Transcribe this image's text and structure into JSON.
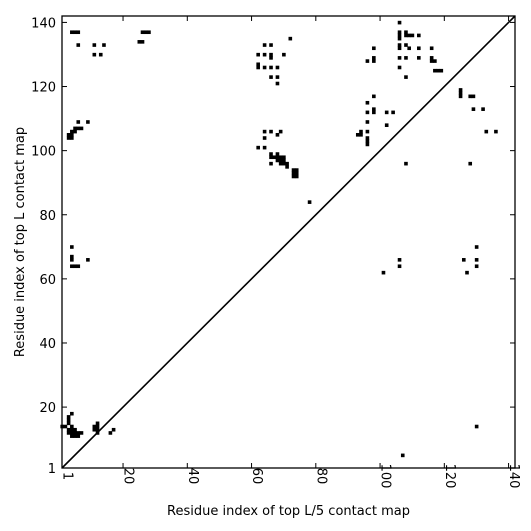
{
  "chart_data": {
    "type": "scatter",
    "title": "",
    "xlabel": "Residue index of top L/5 contact map",
    "ylabel": "Residue index of top L contact map",
    "xlim": [
      1,
      142
    ],
    "ylim": [
      1,
      142
    ],
    "xticks": [
      1,
      20,
      40,
      60,
      80,
      100,
      120,
      140
    ],
    "yticks": [
      1,
      20,
      40,
      60,
      80,
      100,
      120,
      140
    ],
    "grid": false,
    "legend": "none",
    "marker": "square",
    "marker_color": "#000000",
    "diagonal_line": true,
    "series": [
      {
        "values": [
          [
            4,
            137
          ],
          [
            5,
            137
          ],
          [
            6,
            137
          ],
          [
            6,
            133
          ],
          [
            11,
            133
          ],
          [
            11,
            130
          ],
          [
            13,
            130
          ],
          [
            14,
            133
          ],
          [
            25,
            134
          ],
          [
            26,
            134
          ],
          [
            26,
            137
          ],
          [
            27,
            137
          ],
          [
            28,
            137
          ],
          [
            62,
            130
          ],
          [
            62,
            127
          ],
          [
            62,
            126
          ],
          [
            64,
            133
          ],
          [
            64,
            130
          ],
          [
            64,
            126
          ],
          [
            66,
            133
          ],
          [
            66,
            130
          ],
          [
            66,
            129
          ],
          [
            66,
            126
          ],
          [
            66,
            123
          ],
          [
            68,
            126
          ],
          [
            68,
            123
          ],
          [
            68,
            121
          ],
          [
            70,
            130
          ],
          [
            72,
            135
          ],
          [
            98,
            132
          ],
          [
            98,
            128
          ],
          [
            98,
            129
          ],
          [
            96,
            128
          ],
          [
            106,
            140
          ],
          [
            106,
            137
          ],
          [
            106,
            136
          ],
          [
            106,
            135
          ],
          [
            106,
            133
          ],
          [
            106,
            132
          ],
          [
            106,
            129
          ],
          [
            106,
            126
          ],
          [
            108,
            137
          ],
          [
            108,
            136
          ],
          [
            109,
            136
          ],
          [
            108,
            133
          ],
          [
            109,
            132
          ],
          [
            108,
            129
          ],
          [
            108,
            123
          ],
          [
            110,
            136
          ],
          [
            112,
            136
          ],
          [
            112,
            132
          ],
          [
            112,
            129
          ],
          [
            116,
            132
          ],
          [
            116,
            129
          ],
          [
            116,
            128
          ],
          [
            117,
            128
          ],
          [
            117,
            125
          ],
          [
            118,
            125
          ],
          [
            119,
            125
          ],
          [
            98,
            117
          ],
          [
            96,
            115
          ],
          [
            96,
            112
          ],
          [
            98,
            113
          ],
          [
            98,
            112
          ],
          [
            96,
            109
          ],
          [
            102,
            112
          ],
          [
            104,
            112
          ],
          [
            102,
            108
          ],
          [
            96,
            106
          ],
          [
            94,
            106
          ],
          [
            93,
            105
          ],
          [
            94,
            105
          ],
          [
            96,
            104
          ],
          [
            96,
            103
          ],
          [
            96,
            102
          ],
          [
            125,
            119
          ],
          [
            125,
            118
          ],
          [
            125,
            117
          ],
          [
            128,
            117
          ],
          [
            129,
            117
          ],
          [
            129,
            113
          ],
          [
            132,
            113
          ],
          [
            133,
            106
          ],
          [
            136,
            106
          ],
          [
            3,
            105
          ],
          [
            3,
            104
          ],
          [
            4,
            106
          ],
          [
            4,
            105
          ],
          [
            4,
            104
          ],
          [
            5,
            107
          ],
          [
            5,
            106
          ],
          [
            6,
            107
          ],
          [
            6,
            109
          ],
          [
            7,
            107
          ],
          [
            9,
            109
          ],
          [
            62,
            101
          ],
          [
            64,
            101
          ],
          [
            64,
            104
          ],
          [
            64,
            106
          ],
          [
            66,
            106
          ],
          [
            68,
            105
          ],
          [
            69,
            106
          ],
          [
            66,
            99
          ],
          [
            66,
            98
          ],
          [
            66,
            96
          ],
          [
            67,
            98
          ],
          [
            68,
            98
          ],
          [
            68,
            99
          ],
          [
            68,
            97
          ],
          [
            69,
            98
          ],
          [
            69,
            97
          ],
          [
            69,
            96
          ],
          [
            70,
            98
          ],
          [
            70,
            97
          ],
          [
            70,
            96
          ],
          [
            71,
            96
          ],
          [
            71,
            95
          ],
          [
            73,
            94
          ],
          [
            73,
            93
          ],
          [
            73,
            92
          ],
          [
            74,
            94
          ],
          [
            74,
            93
          ],
          [
            74,
            92
          ],
          [
            78,
            84
          ],
          [
            108,
            96
          ],
          [
            128,
            96
          ],
          [
            4,
            70
          ],
          [
            4,
            67
          ],
          [
            4,
            66
          ],
          [
            4,
            64
          ],
          [
            5,
            64
          ],
          [
            6,
            64
          ],
          [
            9,
            66
          ],
          [
            101,
            62
          ],
          [
            106,
            66
          ],
          [
            106,
            64
          ],
          [
            126,
            66
          ],
          [
            127,
            62
          ],
          [
            130,
            70
          ],
          [
            130,
            66
          ],
          [
            130,
            64
          ],
          [
            1,
            14
          ],
          [
            2,
            14
          ],
          [
            3,
            17
          ],
          [
            3,
            16
          ],
          [
            3,
            15
          ],
          [
            3,
            13
          ],
          [
            3,
            12
          ],
          [
            4,
            18
          ],
          [
            4,
            14
          ],
          [
            4,
            13
          ],
          [
            4,
            12
          ],
          [
            4,
            11
          ],
          [
            5,
            13
          ],
          [
            5,
            12
          ],
          [
            5,
            11
          ],
          [
            6,
            12
          ],
          [
            6,
            11
          ],
          [
            7,
            12
          ],
          [
            11,
            14
          ],
          [
            11,
            13
          ],
          [
            12,
            14
          ],
          [
            12,
            13
          ],
          [
            12,
            12
          ],
          [
            12,
            15
          ],
          [
            16,
            12
          ],
          [
            17,
            13
          ],
          [
            107,
            5
          ],
          [
            130,
            14
          ]
        ]
      }
    ]
  }
}
